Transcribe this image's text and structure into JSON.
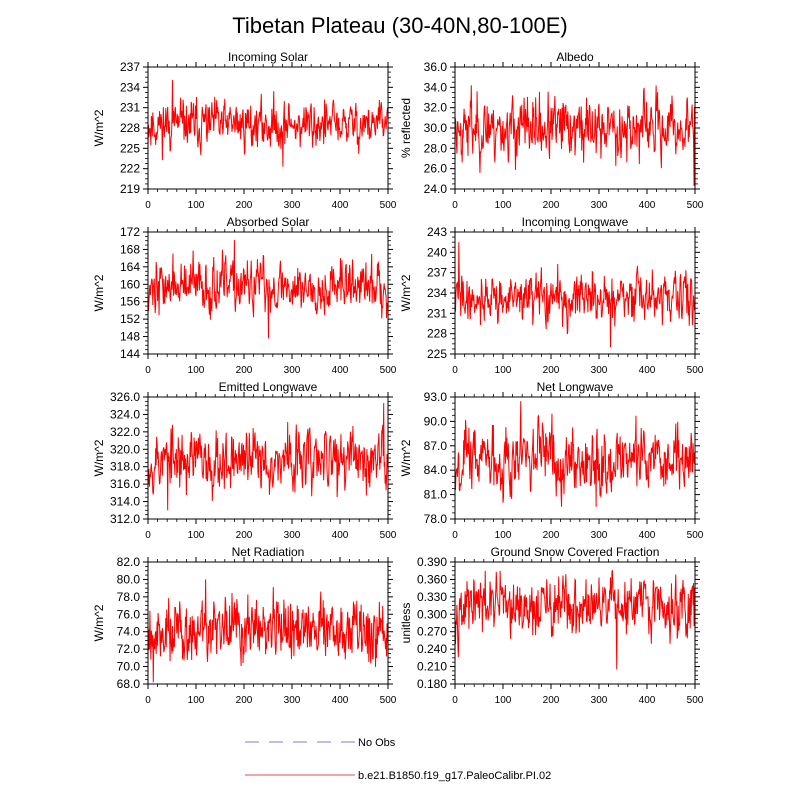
{
  "figure_title": "Tibetan Plateau (30-40N,80-100E)",
  "chart_data": [
    {
      "type": "line",
      "title": "Incoming Solar",
      "ylabel": "W/m^2",
      "xlim": [
        0,
        500
      ],
      "xticks": [
        "0",
        "100",
        "200",
        "300",
        "400",
        "500"
      ],
      "ylim": [
        219,
        237
      ],
      "yticks": [
        "219",
        "222",
        "225",
        "228",
        "231",
        "234",
        "237"
      ],
      "mean": 228.5,
      "amp": 1.9,
      "min": 222.3,
      "max": 235.1,
      "seed": 11
    },
    {
      "type": "line",
      "title": "Albedo",
      "ylabel": "% reflected",
      "xlim": [
        0,
        500
      ],
      "xticks": [
        "0",
        "100",
        "200",
        "300",
        "400",
        "500"
      ],
      "ylim": [
        24,
        36
      ],
      "yticks": [
        "24.0",
        "26.0",
        "28.0",
        "30.0",
        "32.0",
        "34.0",
        "36.0"
      ],
      "mean": 30.0,
      "amp": 1.6,
      "min": 24.3,
      "max": 34.2,
      "seed": 23
    },
    {
      "type": "line",
      "title": "Absorbed Solar",
      "ylabel": "W/m^2",
      "xlim": [
        0,
        500
      ],
      "xticks": [
        "0",
        "100",
        "200",
        "300",
        "400",
        "500"
      ],
      "ylim": [
        144,
        172
      ],
      "yticks": [
        "144",
        "148",
        "152",
        "156",
        "160",
        "164",
        "168",
        "172"
      ],
      "mean": 159.5,
      "amp": 3.2,
      "min": 147.6,
      "max": 170.2,
      "seed": 37
    },
    {
      "type": "line",
      "title": "Incoming Longwave",
      "ylabel": "W/m^2",
      "xlim": [
        0,
        500
      ],
      "xticks": [
        "0",
        "100",
        "200",
        "300",
        "400",
        "500"
      ],
      "ylim": [
        225,
        243
      ],
      "yticks": [
        "225",
        "228",
        "231",
        "234",
        "237",
        "240",
        "243"
      ],
      "mean": 233.2,
      "amp": 1.9,
      "min": 226.0,
      "max": 241.5,
      "seed": 41
    },
    {
      "type": "line",
      "title": "Emitted Longwave",
      "ylabel": "W/m^2",
      "xlim": [
        0,
        500
      ],
      "xticks": [
        "0",
        "100",
        "200",
        "300",
        "400",
        "500"
      ],
      "ylim": [
        312,
        326
      ],
      "yticks": [
        "312.0",
        "314.0",
        "316.0",
        "318.0",
        "320.0",
        "322.0",
        "324.0",
        "326.0"
      ],
      "mean": 318.8,
      "amp": 1.9,
      "min": 313.0,
      "max": 325.3,
      "seed": 53
    },
    {
      "type": "line",
      "title": "Net Longwave",
      "ylabel": "W/m^2",
      "xlim": [
        0,
        500
      ],
      "xticks": [
        "0",
        "100",
        "200",
        "300",
        "400",
        "500"
      ],
      "ylim": [
        78,
        93
      ],
      "yticks": [
        "78.0",
        "81.0",
        "84.0",
        "87.0",
        "90.0",
        "93.0"
      ],
      "mean": 85.5,
      "amp": 2.2,
      "min": 79.5,
      "max": 92.5,
      "seed": 67
    },
    {
      "type": "line",
      "title": "Net Radiation",
      "ylabel": "W/m^2",
      "xlim": [
        0,
        500
      ],
      "xticks": [
        "0",
        "100",
        "200",
        "300",
        "400",
        "500"
      ],
      "ylim": [
        68,
        82
      ],
      "yticks": [
        "68.0",
        "70.0",
        "72.0",
        "74.0",
        "76.0",
        "78.0",
        "80.0",
        "82.0"
      ],
      "mean": 74.2,
      "amp": 2.0,
      "min": 68.2,
      "max": 80.0,
      "seed": 79
    },
    {
      "type": "line",
      "title": "Ground Snow Covered Fraction",
      "ylabel": "unitless",
      "xlim": [
        0,
        500
      ],
      "xticks": [
        "0",
        "100",
        "200",
        "300",
        "400",
        "500"
      ],
      "ylim": [
        0.18,
        0.39
      ],
      "yticks": [
        "0.180",
        "0.210",
        "0.240",
        "0.270",
        "0.300",
        "0.330",
        "0.360",
        "0.390"
      ],
      "mean": 0.312,
      "amp": 0.027,
      "min": 0.205,
      "max": 0.375,
      "seed": 97
    }
  ],
  "legend": [
    {
      "label": "No Obs",
      "color": "#a8a8e8",
      "style": "dashed"
    },
    {
      "label": "b.e21.B1850.f19_g17.PaleoCalibr.PI.02",
      "color": "#ee6f6f",
      "style": "solid"
    }
  ],
  "series_color": "#ff0000"
}
